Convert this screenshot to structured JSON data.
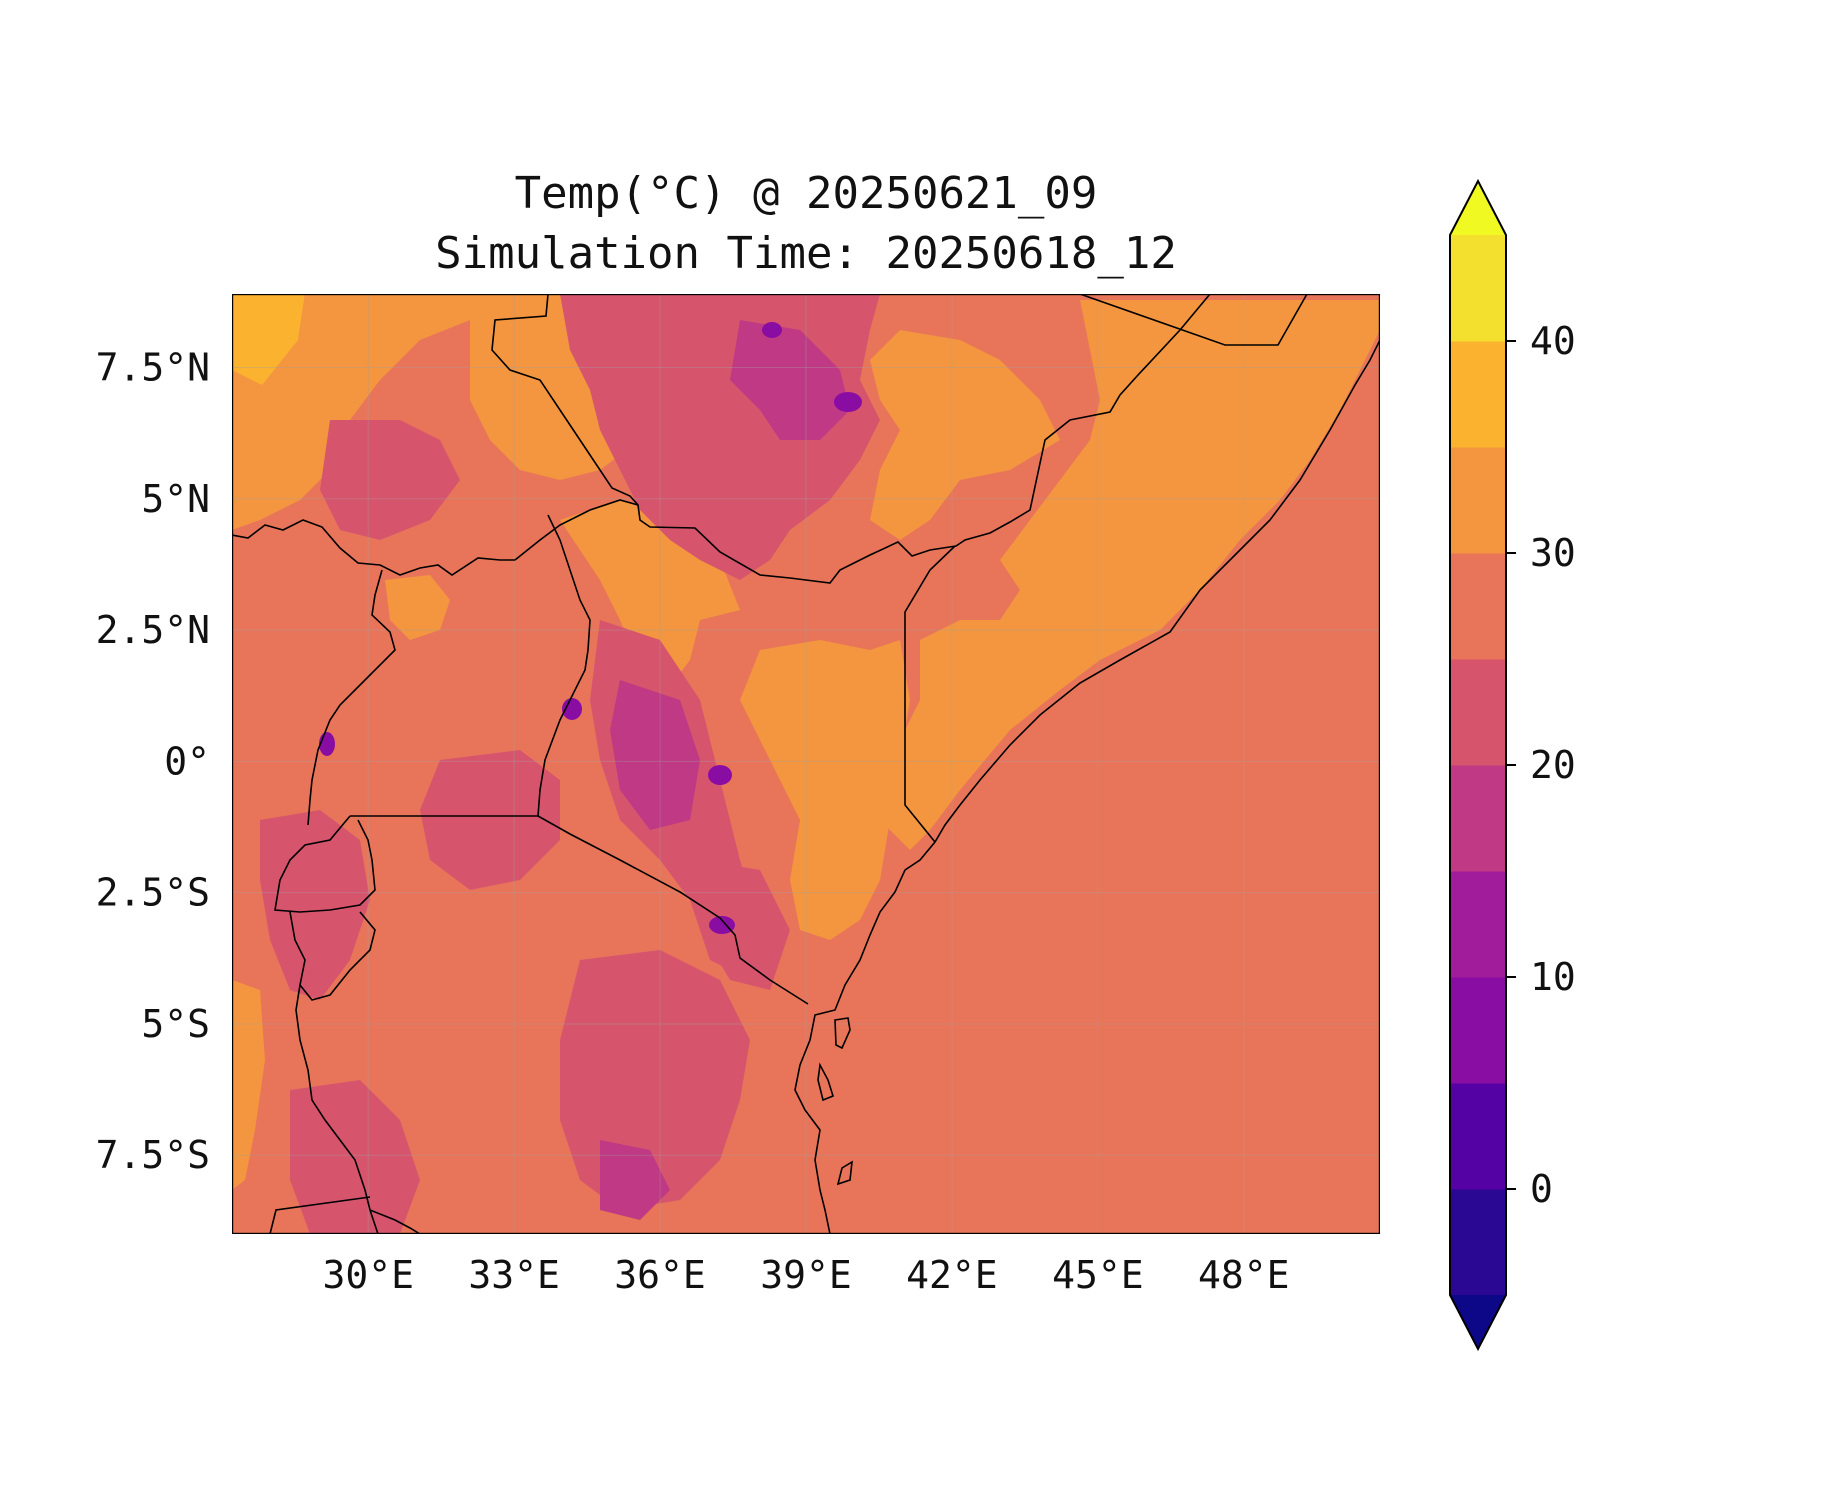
{
  "figure": {
    "title_line1": "Temp(°C) @ 20250621_09",
    "title_line2": "Simulation Time: 20250618_12"
  },
  "map": {
    "lon_range": [
      27.2,
      50.8
    ],
    "lat_range": [
      -9.0,
      8.9
    ],
    "x_ticks": [
      30,
      33,
      36,
      39,
      42,
      45,
      48
    ],
    "x_tick_labels": [
      "30°E",
      "33°E",
      "36°E",
      "39°E",
      "42°E",
      "45°E",
      "48°E"
    ],
    "y_ticks": [
      7.5,
      5,
      2.5,
      0,
      -2.5,
      -5,
      -7.5
    ],
    "y_tick_labels": [
      "7.5°N",
      "5°N",
      "2.5°N",
      "0°",
      "2.5°S",
      "5°S",
      "7.5°S"
    ],
    "gridlines": true,
    "colors": {
      "ocean": "#e8755a",
      "base_land": "#e8755a",
      "warm": "#f3963f",
      "hot": "#fbb32f",
      "cool": "#d6556d",
      "cold": "#bf3984",
      "very_cold": "#8a0da3",
      "border": "#000000"
    }
  },
  "colorbar": {
    "ticks": [
      0,
      10,
      20,
      30,
      40
    ],
    "tick_labels": [
      "0",
      "10",
      "20",
      "30",
      "40"
    ],
    "range": [
      -5,
      45
    ],
    "extend": "both",
    "levels": [
      {
        "from": -5,
        "to": 0,
        "color": "#2a0893"
      },
      {
        "from": 0,
        "to": 5,
        "color": "#5402a3"
      },
      {
        "from": 5,
        "to": 10,
        "color": "#8a0da3"
      },
      {
        "from": 10,
        "to": 15,
        "color": "#a11c9b"
      },
      {
        "from": 15,
        "to": 20,
        "color": "#bf3984"
      },
      {
        "from": 20,
        "to": 25,
        "color": "#d6556d"
      },
      {
        "from": 25,
        "to": 30,
        "color": "#e8755a"
      },
      {
        "from": 30,
        "to": 35,
        "color": "#f3963f"
      },
      {
        "from": 35,
        "to": 40,
        "color": "#fbb32f"
      },
      {
        "from": 40,
        "to": 45,
        "color": "#f3e02e"
      }
    ],
    "under_color": "#0d0887",
    "over_color": "#f0f921"
  }
}
